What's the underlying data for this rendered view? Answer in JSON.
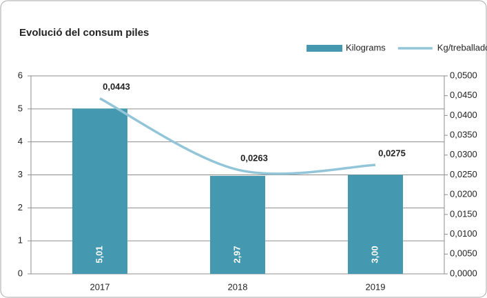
{
  "chart_data": {
    "type": "bar-line",
    "title": "Evolució del consum piles",
    "categories": [
      "2017",
      "2018",
      "2019"
    ],
    "series": [
      {
        "name": "Kilograms",
        "type": "bar",
        "color": "#4499b0",
        "values": [
          5.01,
          2.97,
          3.0
        ],
        "value_labels": [
          "5,01",
          "2,97",
          "3,00"
        ]
      },
      {
        "name": "Kg/treballador",
        "type": "line",
        "axis": "y2",
        "color": "#92c5d8",
        "values": [
          0.0443,
          0.0263,
          0.0275
        ],
        "value_labels": [
          "0,0443",
          "0,0263",
          "0,0275"
        ]
      }
    ],
    "ylim": [
      0,
      6
    ],
    "yticks": [
      0,
      1,
      2,
      3,
      4,
      5,
      6
    ],
    "y2lim": [
      0,
      0.05
    ],
    "y2ticks": [
      {
        "value": 0,
        "label": "0,0000"
      },
      {
        "value": 0.005,
        "label": "0,0050"
      },
      {
        "value": 0.01,
        "label": "0,0100"
      },
      {
        "value": 0.015,
        "label": "0,0150"
      },
      {
        "value": 0.02,
        "label": "0,0200"
      },
      {
        "value": 0.025,
        "label": "0,0250"
      },
      {
        "value": 0.03,
        "label": "0,0300"
      },
      {
        "value": 0.035,
        "label": "0,0350"
      },
      {
        "value": 0.04,
        "label": "0,0400"
      },
      {
        "value": 0.045,
        "label": "0,0450"
      },
      {
        "value": 0.05,
        "label": "0,0500"
      }
    ],
    "grid": true,
    "legend": "top-right"
  }
}
